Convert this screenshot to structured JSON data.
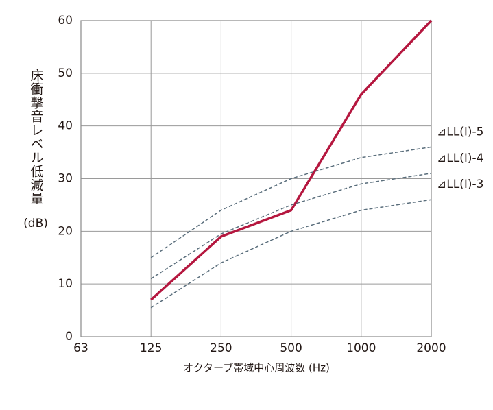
{
  "chart_data": {
    "type": "line",
    "ylabel": "床衝撃音レベル低減量",
    "ylabel_unit": "(dB)",
    "xlabel": "オクターブ帯域中心周波数 (Hz)",
    "categories": [
      "63",
      "125",
      "250",
      "500",
      "1000",
      "2000"
    ],
    "series": [
      {
        "color": "#b5173f",
        "dash": false,
        "values": [
          null,
          7,
          19,
          24,
          46,
          60
        ]
      },
      {
        "name": "⊿LL(I)-5",
        "color": "#5a6e7c",
        "dash": true,
        "values": [
          null,
          15,
          24,
          30,
          34,
          36
        ]
      },
      {
        "name": "⊿LL(I)-4",
        "color": "#5a6e7c",
        "dash": true,
        "values": [
          null,
          11,
          19.5,
          25,
          29,
          31
        ]
      },
      {
        "name": "⊿LL(I)-3",
        "color": "#5a6e7c",
        "dash": true,
        "values": [
          null,
          5.5,
          14,
          20,
          24,
          26
        ]
      }
    ],
    "ylim": [
      0,
      60
    ],
    "yticks": [
      0,
      10,
      20,
      30,
      40,
      50,
      60
    ],
    "grid": true
  }
}
